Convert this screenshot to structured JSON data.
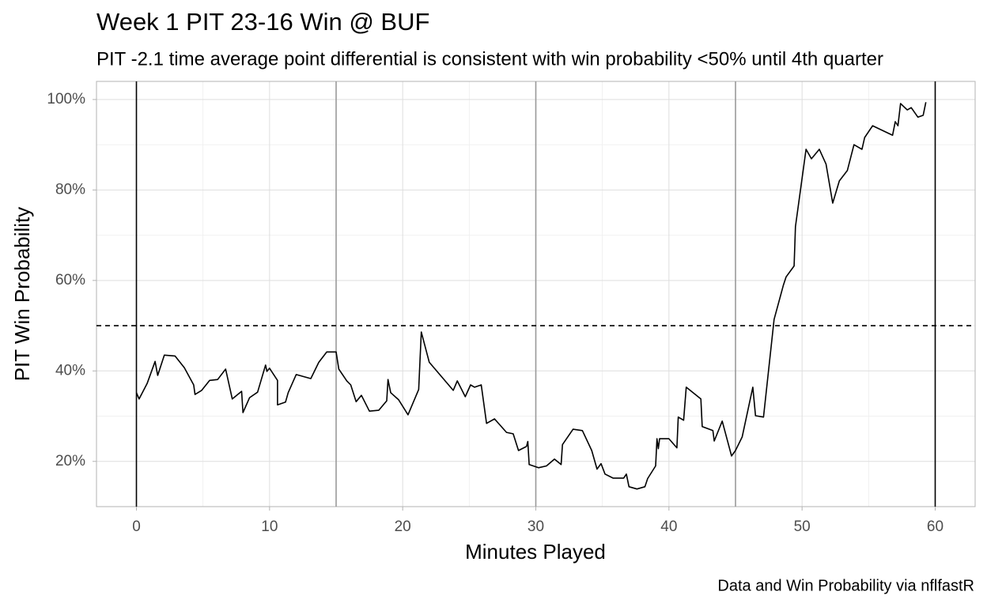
{
  "chart_data": {
    "type": "line",
    "title": "Week 1 PIT 23-16 Win @ BUF",
    "subtitle": "PIT -2.1 time average point differential is consistent with win probability <50% until 4th quarter",
    "xlabel": "Minutes Played",
    "ylabel": "PIT Win Probability",
    "caption": "Data and Win Probability via nflfastR",
    "xlim": [
      -3,
      63
    ],
    "ylim": [
      10,
      104
    ],
    "xticks": [
      0,
      10,
      20,
      30,
      40,
      50,
      60
    ],
    "yticks": [
      {
        "value": 20,
        "label": "20%"
      },
      {
        "value": 40,
        "label": "40%"
      },
      {
        "value": 60,
        "label": "60%"
      },
      {
        "value": 80,
        "label": "80%"
      },
      {
        "value": 100,
        "label": "100%"
      }
    ],
    "xminor": [
      5,
      15,
      25,
      35,
      45,
      55
    ],
    "yminor": [
      30,
      50,
      70,
      90
    ],
    "grid": true,
    "vlines": [
      {
        "value": 0,
        "color": "#000000"
      },
      {
        "value": 15,
        "color": "#999999"
      },
      {
        "value": 30,
        "color": "#999999"
      },
      {
        "value": 45,
        "color": "#999999"
      },
      {
        "value": 60,
        "color": "#000000"
      }
    ],
    "hline": {
      "value": 50,
      "color": "#000000",
      "dashed": true
    },
    "series": [
      {
        "name": "PIT",
        "color": "#000000",
        "x": [
          0,
          0.2,
          0.8,
          1.4,
          1.6,
          2.1,
          2.9,
          3.6,
          4.3,
          4.4,
          4.9,
          5.5,
          6.1,
          6.7,
          7.2,
          7.9,
          8.0,
          8.5,
          9.1,
          9.7,
          9.8,
          10.0,
          10.6,
          10.6,
          11.2,
          11.4,
          12.0,
          13.1,
          13.7,
          14.3,
          15.0,
          15.2,
          15.8,
          16.1,
          16.5,
          16.9,
          17.5,
          18.2,
          18.8,
          18.9,
          19.1,
          19.7,
          20.4,
          21.2,
          21.4,
          22.0,
          23.8,
          24.1,
          24.7,
          25.1,
          25.4,
          25.9,
          26.3,
          26.9,
          27.8,
          28.3,
          28.7,
          29.3,
          29.4,
          29.5,
          30.2,
          30.8,
          31.4,
          31.9,
          32.0,
          32.8,
          33.5,
          34.2,
          34.6,
          34.9,
          35.2,
          35.8,
          36.6,
          36.8,
          37.0,
          37.6,
          38.2,
          38.4,
          39.0,
          39.1,
          39.2,
          39.3,
          40.0,
          40.6,
          40.7,
          41.1,
          41.3,
          42.4,
          42.5,
          43.3,
          43.4,
          44.0,
          44.7,
          45.0,
          45.5,
          46.3,
          46.5,
          47.1,
          47.9,
          48.6,
          48.8,
          49.4,
          49.5,
          50.3,
          50.7,
          51.3,
          51.8,
          52.3,
          52.8,
          53.4,
          53.9,
          54.5,
          54.7,
          55.3,
          56.8,
          57.0,
          57.2,
          57.4,
          57.9,
          58.2,
          58.7,
          59.1,
          59.3
        ],
        "values": [
          35.2,
          33.8,
          37.2,
          42.1,
          39,
          43.5,
          43.3,
          40.7,
          36.9,
          34.8,
          35.7,
          37.9,
          38.1,
          40.4,
          33.8,
          35.5,
          30.8,
          34.1,
          35.3,
          41.3,
          39.9,
          40.6,
          37.9,
          32.5,
          33.1,
          35.2,
          39.2,
          38.3,
          41.9,
          44.2,
          44.2,
          40.4,
          37.8,
          36.9,
          33.2,
          34.6,
          31.1,
          31.3,
          33.4,
          38.1,
          35.2,
          33.6,
          30.3,
          35.9,
          48.6,
          41.9,
          35.7,
          37.8,
          34.3,
          36.9,
          36.4,
          36.9,
          28.4,
          29.4,
          26.4,
          26.1,
          22.4,
          23.3,
          24.4,
          19.3,
          18.6,
          19,
          20.5,
          19.3,
          23.7,
          27.1,
          26.8,
          22.4,
          18.3,
          19.5,
          17.2,
          16.3,
          16.3,
          17.2,
          14.4,
          13.9,
          14.4,
          16.2,
          19,
          25,
          22.8,
          25,
          25,
          23,
          29.8,
          29.1,
          36.4,
          33.8,
          27.7,
          26.8,
          24.5,
          28.9,
          21.2,
          22.4,
          25.4,
          36.4,
          30.1,
          29.8,
          51.4,
          59,
          60.8,
          63.2,
          71.9,
          89,
          86.9,
          89,
          85.7,
          77.1,
          82,
          84.3,
          90,
          89,
          91.6,
          94.2,
          92.1,
          95.1,
          94.2,
          99.1,
          97.7,
          98.2,
          96.1,
          96.5,
          99.4
        ]
      }
    ]
  }
}
